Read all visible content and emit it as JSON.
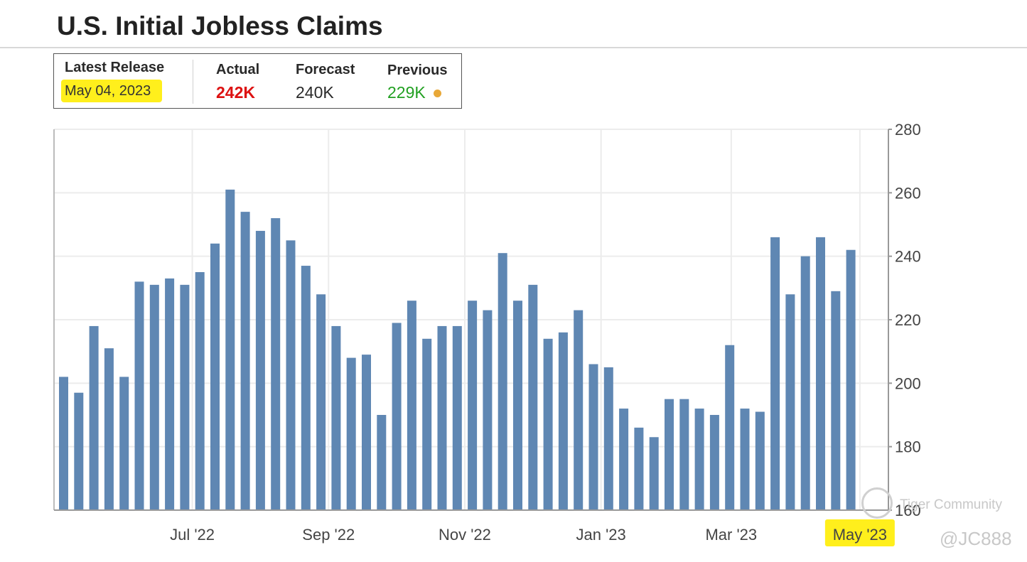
{
  "page": {
    "title": "U.S. Initial Jobless Claims"
  },
  "release": {
    "latest_label": "Latest Release",
    "latest_date": "May 04, 2023",
    "actual_label": "Actual",
    "actual_value": "242K",
    "forecast_label": "Forecast",
    "forecast_value": "240K",
    "previous_label": "Previous",
    "previous_value": "229K",
    "colors": {
      "actual": "#dd1111",
      "previous": "#22a022",
      "indicator_dot": "#e8a838",
      "highlight": "#ffef1c"
    }
  },
  "watermark": {
    "brand": "Tiger Community",
    "handle": "@JC888"
  },
  "chart_data": {
    "type": "bar",
    "title": "U.S. Initial Jobless Claims",
    "xlabel": "",
    "ylabel": "",
    "unit": "K",
    "ylim": [
      160,
      280
    ],
    "yticks": [
      160,
      180,
      200,
      220,
      240,
      260,
      280
    ],
    "y_axis_side": "right",
    "grid": true,
    "bar_color": "#5f87b3",
    "x_tick_labels": [
      {
        "label": "Jul '22",
        "index": 8.5
      },
      {
        "label": "Sep '22",
        "index": 17.5
      },
      {
        "label": "Nov '22",
        "index": 26.5
      },
      {
        "label": "Jan '23",
        "index": 35.5
      },
      {
        "label": "Mar '23",
        "index": 44.1
      },
      {
        "label": "May '23",
        "index": 52.6,
        "highlighted": true
      }
    ],
    "values": [
      202,
      197,
      218,
      211,
      202,
      232,
      231,
      233,
      231,
      235,
      244,
      261,
      254,
      248,
      252,
      245,
      237,
      228,
      218,
      208,
      209,
      190,
      219,
      226,
      214,
      218,
      218,
      226,
      223,
      241,
      226,
      231,
      214,
      216,
      223,
      206,
      205,
      192,
      186,
      183,
      195,
      195,
      192,
      190,
      212,
      192,
      191,
      246,
      228,
      240,
      246,
      229,
      242
    ]
  }
}
